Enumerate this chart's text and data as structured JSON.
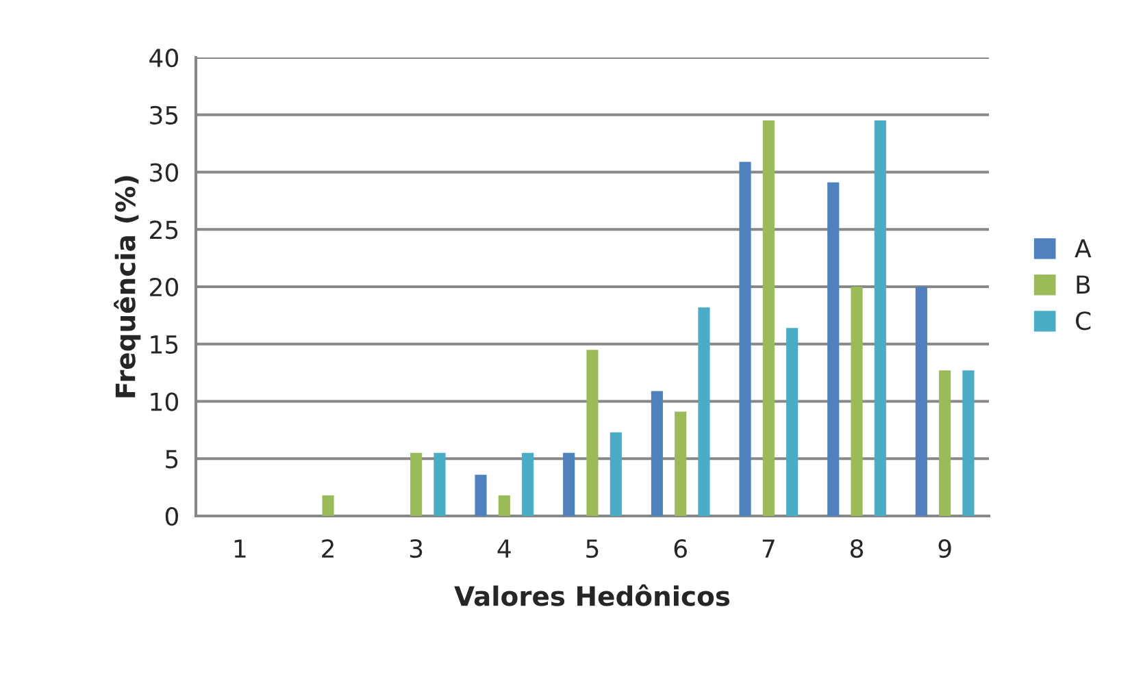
{
  "chart_data": {
    "type": "bar",
    "xlabel": "Valores Hedônicos",
    "ylabel": "Frequência (%)",
    "categories": [
      "1",
      "2",
      "3",
      "4",
      "5",
      "6",
      "7",
      "8",
      "9"
    ],
    "series": [
      {
        "name": "A",
        "color": "#4f81bd",
        "values": [
          0,
          0,
          0,
          3.6,
          5.5,
          10.9,
          30.9,
          29.1,
          20
        ]
      },
      {
        "name": "B",
        "color": "#9bbb59",
        "values": [
          0,
          1.8,
          5.5,
          1.8,
          14.5,
          9.1,
          34.5,
          20,
          12.7
        ]
      },
      {
        "name": "C",
        "color": "#4bacc6",
        "values": [
          0,
          0,
          5.5,
          5.5,
          7.3,
          18.2,
          16.4,
          34.5,
          12.7
        ]
      }
    ],
    "ylim": [
      0,
      40
    ],
    "yticks": [
      0,
      5,
      10,
      15,
      20,
      25,
      30,
      35,
      40
    ],
    "grid": "y",
    "legend": "right"
  }
}
